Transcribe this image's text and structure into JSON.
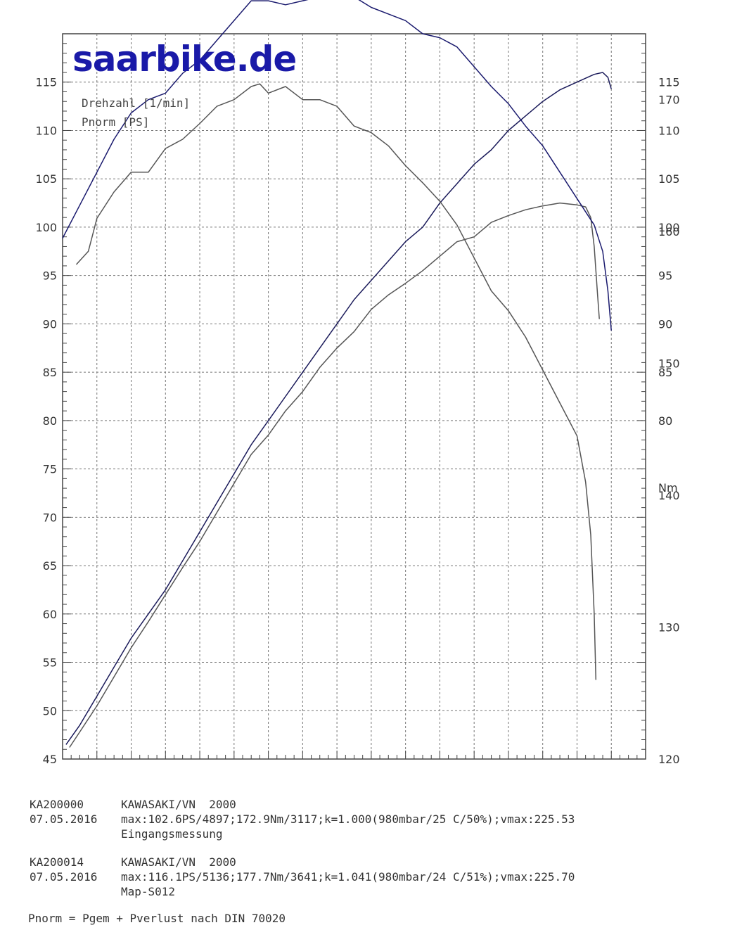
{
  "brand": "saarbike.de",
  "chart_data": {
    "type": "line",
    "title": "",
    "xlabel": "",
    "ylabel": "",
    "xlim": [
      2000,
      5400
    ],
    "ylim_power": [
      45,
      120
    ],
    "ylim_torque": [
      120,
      175
    ],
    "x_ticks": [
      2000,
      2200,
      2400,
      2600,
      2800,
      3000,
      3200,
      3400,
      3600,
      3800,
      4000,
      4200,
      4400,
      4600,
      4800,
      5000,
      5200,
      5400
    ],
    "y_left_ticks": [
      45,
      50,
      55,
      60,
      65,
      70,
      75,
      80,
      85,
      90,
      95,
      100,
      105,
      110,
      115
    ],
    "y_right_power_ticks": [
      80,
      85,
      90,
      95,
      100,
      105,
      110,
      115
    ],
    "y_right_torque_ticks": [
      120,
      130,
      140,
      150,
      160,
      170
    ],
    "torque_unit_label": "Nm",
    "legend": [
      "Drehzahl [1/min]",
      "Pnorm [PS]"
    ],
    "grid": true,
    "series": [
      {
        "axis": "power",
        "color": "#1a1a5a",
        "points": [
          [
            2020,
            46.5
          ],
          [
            2100,
            48.5
          ],
          [
            2200,
            51.5
          ],
          [
            2300,
            54.5
          ],
          [
            2400,
            57.5
          ],
          [
            2500,
            60
          ],
          [
            2600,
            62.5
          ],
          [
            2700,
            65.5
          ],
          [
            2800,
            68.5
          ],
          [
            2900,
            71.5
          ],
          [
            3000,
            74.5
          ],
          [
            3100,
            77.5
          ],
          [
            3200,
            80
          ],
          [
            3300,
            82.5
          ],
          [
            3400,
            85
          ],
          [
            3500,
            87.5
          ],
          [
            3600,
            90
          ],
          [
            3700,
            92.5
          ],
          [
            3800,
            94.5
          ],
          [
            3900,
            96.5
          ],
          [
            4000,
            98.5
          ],
          [
            4100,
            100
          ],
          [
            4200,
            102.5
          ],
          [
            4300,
            104.5
          ],
          [
            4400,
            106.5
          ],
          [
            4500,
            108
          ],
          [
            4600,
            110
          ],
          [
            4700,
            111.5
          ],
          [
            4800,
            113
          ],
          [
            4900,
            114.2
          ],
          [
            5000,
            115
          ],
          [
            5100,
            115.8
          ],
          [
            5150,
            116
          ],
          [
            5180,
            115.5
          ],
          [
            5200,
            114.3
          ]
        ]
      },
      {
        "axis": "power",
        "color": "#555555",
        "points": [
          [
            2040,
            46.2
          ],
          [
            2100,
            47.8
          ],
          [
            2200,
            50.5
          ],
          [
            2300,
            53.5
          ],
          [
            2400,
            56.5
          ],
          [
            2500,
            59.2
          ],
          [
            2600,
            62
          ],
          [
            2700,
            64.8
          ],
          [
            2800,
            67.5
          ],
          [
            2900,
            70.5
          ],
          [
            3000,
            73.5
          ],
          [
            3100,
            76.5
          ],
          [
            3200,
            78.5
          ],
          [
            3300,
            81
          ],
          [
            3400,
            83
          ],
          [
            3500,
            85.5
          ],
          [
            3600,
            87.5
          ],
          [
            3700,
            89.2
          ],
          [
            3800,
            91.5
          ],
          [
            3900,
            93
          ],
          [
            4000,
            94.2
          ],
          [
            4100,
            95.5
          ],
          [
            4200,
            97
          ],
          [
            4300,
            98.5
          ],
          [
            4400,
            99
          ],
          [
            4500,
            100.5
          ],
          [
            4600,
            101.2
          ],
          [
            4700,
            101.8
          ],
          [
            4800,
            102.2
          ],
          [
            4900,
            102.5
          ],
          [
            5000,
            102.3
          ],
          [
            5050,
            102.1
          ],
          [
            5080,
            101
          ],
          [
            5100,
            98
          ],
          [
            5120,
            93
          ],
          [
            5130,
            90.5
          ]
        ]
      },
      {
        "axis": "torque",
        "color": "#1a1a6e",
        "points": [
          [
            2000,
            159.5
          ],
          [
            2100,
            162
          ],
          [
            2200,
            164.5
          ],
          [
            2300,
            167
          ],
          [
            2400,
            169
          ],
          [
            2500,
            170
          ],
          [
            2600,
            170.5
          ],
          [
            2700,
            172
          ],
          [
            2800,
            173
          ],
          [
            2900,
            174.5
          ],
          [
            3000,
            176
          ],
          [
            3100,
            177.5
          ],
          [
            3200,
            177.5
          ],
          [
            3300,
            177.2
          ],
          [
            3400,
            177.5
          ],
          [
            3500,
            177.8
          ],
          [
            3600,
            177.8
          ],
          [
            3650,
            178
          ],
          [
            3700,
            177.8
          ],
          [
            3800,
            177
          ],
          [
            3900,
            176.5
          ],
          [
            4000,
            176
          ],
          [
            4100,
            175
          ],
          [
            4200,
            174.7
          ],
          [
            4300,
            174
          ],
          [
            4400,
            172.5
          ],
          [
            4500,
            171
          ],
          [
            4600,
            169.7
          ],
          [
            4700,
            168
          ],
          [
            4800,
            166.5
          ],
          [
            4900,
            164.5
          ],
          [
            5000,
            162.5
          ],
          [
            5100,
            160.5
          ],
          [
            5150,
            158.5
          ],
          [
            5180,
            155.5
          ],
          [
            5200,
            152.5
          ]
        ]
      },
      {
        "axis": "torque",
        "color": "#555555",
        "points": [
          [
            2080,
            157.5
          ],
          [
            2150,
            158.5
          ],
          [
            2200,
            161
          ],
          [
            2300,
            163
          ],
          [
            2400,
            164.5
          ],
          [
            2500,
            164.5
          ],
          [
            2600,
            166.3
          ],
          [
            2700,
            167
          ],
          [
            2800,
            168.2
          ],
          [
            2900,
            169.5
          ],
          [
            3000,
            170
          ],
          [
            3100,
            171
          ],
          [
            3150,
            171.2
          ],
          [
            3200,
            170.5
          ],
          [
            3300,
            171
          ],
          [
            3400,
            170
          ],
          [
            3500,
            170
          ],
          [
            3600,
            169.5
          ],
          [
            3700,
            168
          ],
          [
            3800,
            167.5
          ],
          [
            3900,
            166.5
          ],
          [
            4000,
            165
          ],
          [
            4100,
            163.7
          ],
          [
            4200,
            162.3
          ],
          [
            4300,
            160.5
          ],
          [
            4400,
            158
          ],
          [
            4500,
            155.5
          ],
          [
            4600,
            154
          ],
          [
            4700,
            152
          ],
          [
            4800,
            149.5
          ],
          [
            4900,
            147
          ],
          [
            5000,
            144.5
          ],
          [
            5050,
            141
          ],
          [
            5080,
            137
          ],
          [
            5100,
            131
          ],
          [
            5110,
            126
          ]
        ]
      }
    ]
  },
  "runs": [
    {
      "id": "KA200000",
      "date": "07.05.2016",
      "vehicle": "KAWASAKI/VN  2000",
      "details": "max:102.6PS/4897;172.9Nm/3117;k=1.000(980mbar/25 C/50%);vmax:225.53",
      "note": "Eingangsmessung"
    },
    {
      "id": "KA200014",
      "date": "07.05.2016",
      "vehicle": "KAWASAKI/VN  2000",
      "details": "max:116.1PS/5136;177.7Nm/3641;k=1.041(980mbar/24 C/51%);vmax:225.70",
      "note": "Map-S012"
    }
  ],
  "footnote": "Pnorm = Pgem + Pverlust nach DIN 70020"
}
